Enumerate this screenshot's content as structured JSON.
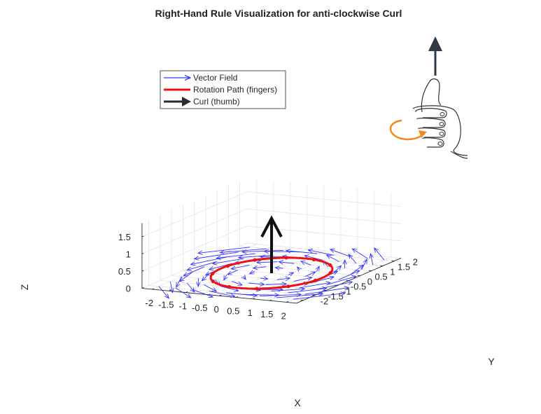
{
  "chart_data": {
    "type": "quiver3d",
    "title": "Right-Hand Rule Visualization for anti-clockwise Curl",
    "xlabel": "X",
    "ylabel": "Y",
    "zlabel": "Z",
    "xlim": [
      -2.3,
      2.3
    ],
    "ylim": [
      -2.3,
      2.3
    ],
    "zlim": [
      0,
      1.9
    ],
    "xticks": [
      "-2",
      "-1.5",
      "-1",
      "-0.5",
      "0",
      "0.5",
      "1",
      "1.5",
      "2"
    ],
    "yticks": [
      "-2",
      "-1.5",
      "-1",
      "-0.5",
      "0",
      "0.5",
      "1",
      "1.5",
      "2"
    ],
    "zticks": [
      "0",
      "0.5",
      "1",
      "1.5"
    ],
    "grid": true,
    "legend": {
      "placement": "top-left",
      "entries": [
        {
          "label": "Vector Field",
          "color": "#3333ff",
          "style": "arrow"
        },
        {
          "label": "Rotation Path (fingers)",
          "color": "#ee1111",
          "style": "line"
        },
        {
          "label": "Curl (thumb)",
          "color": "#2b2b33",
          "style": "thick-arrow"
        }
      ]
    },
    "vector_field": {
      "field": "(-y, x, 0)",
      "grid_min": -2,
      "grid_max": 2,
      "grid_step": 0.5,
      "z": 0,
      "color": "#3333ff"
    },
    "rotation_path": {
      "shape": "circle",
      "center": [
        0,
        0,
        0
      ],
      "radius": 1.5,
      "color": "#ee1111"
    },
    "curl_vector": {
      "from": [
        0,
        0,
        0
      ],
      "to": [
        0,
        0,
        1.6
      ],
      "color": "#111111"
    },
    "inset": {
      "description_icon": "right-hand-thumbs-up-icon",
      "thumb_arrow_color": "#2f3a44",
      "finger_arrow_color": "#f08a1c"
    }
  }
}
